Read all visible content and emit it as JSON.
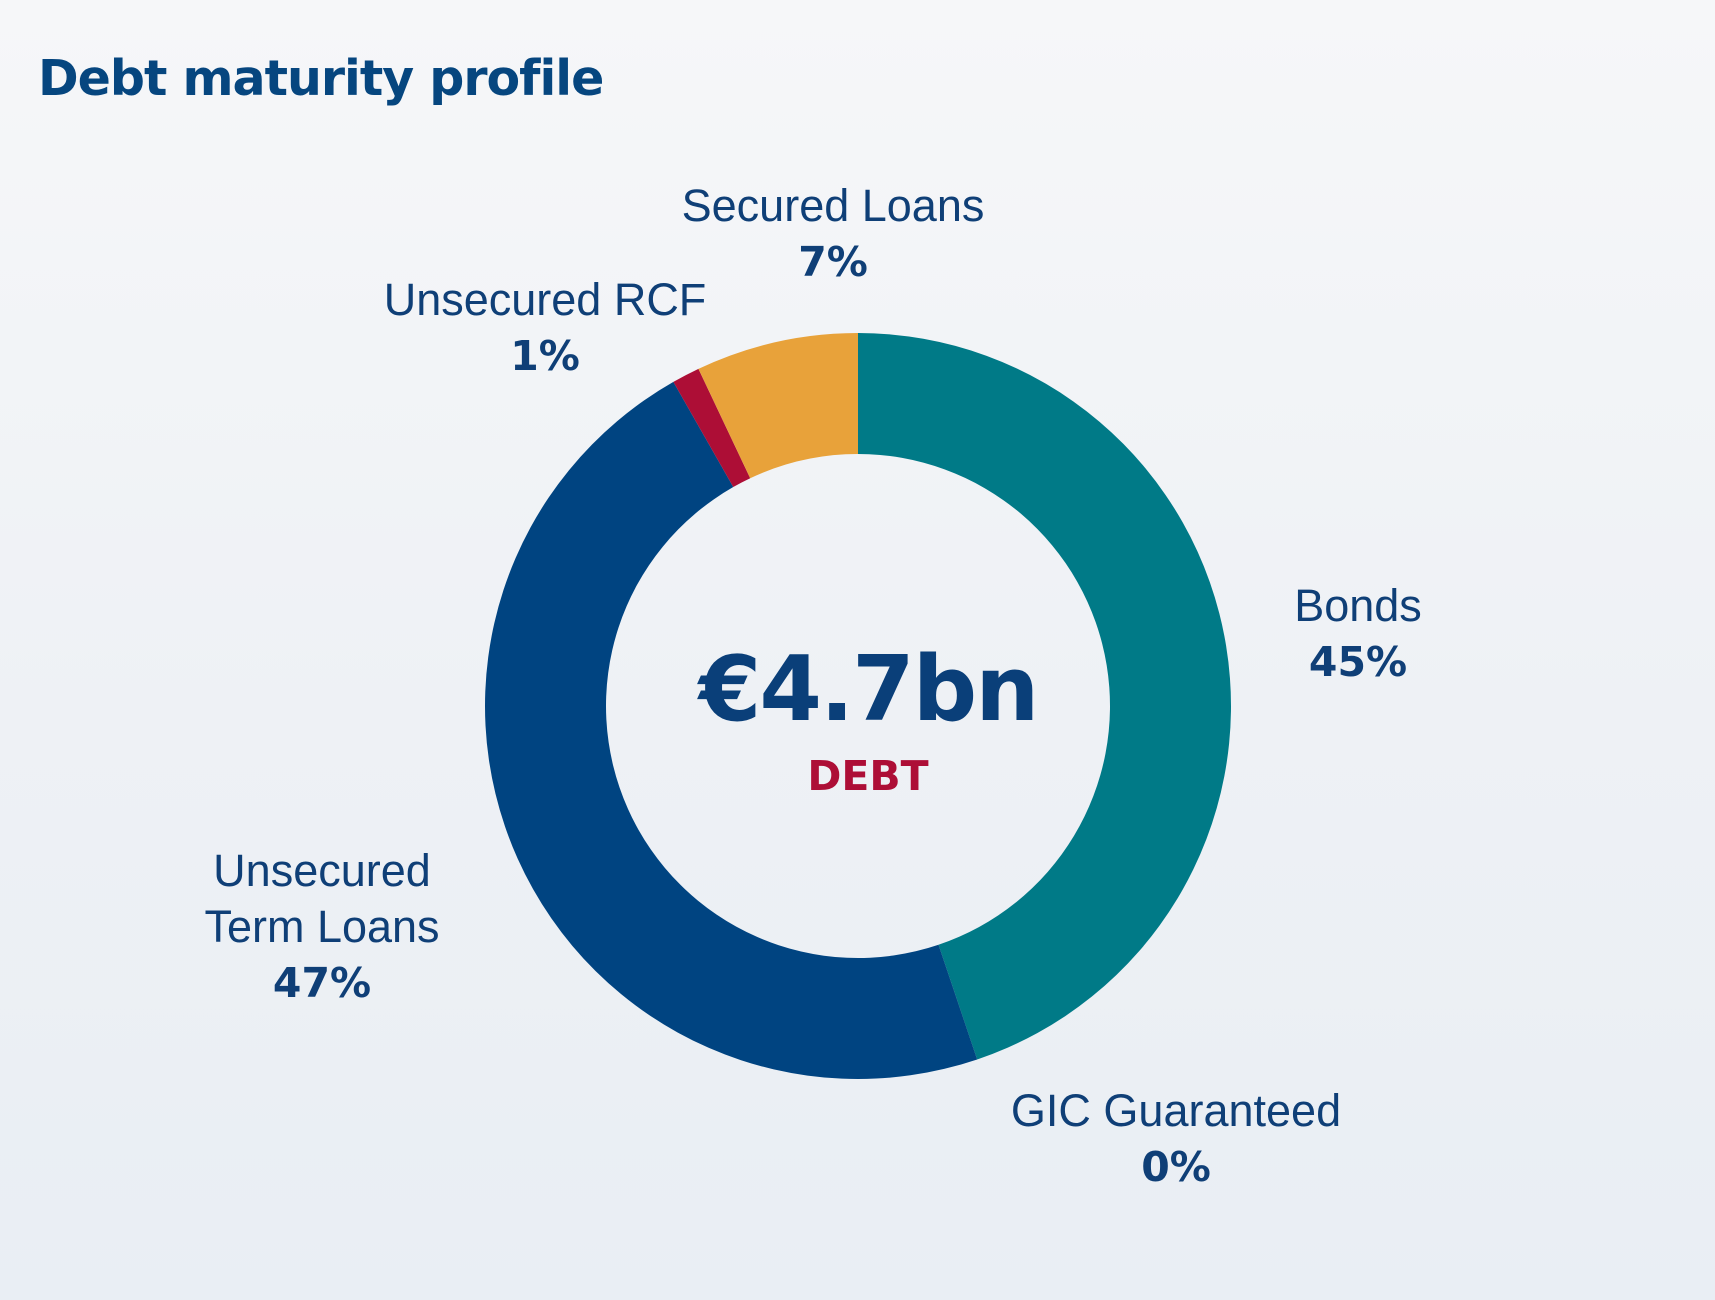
{
  "chart_data": {
    "type": "pie",
    "title": "Debt maturity profile",
    "center_total": "€4.7bn",
    "center_caption": "DEBT",
    "slices": [
      {
        "name": "Bonds",
        "percent_label": "45%",
        "value": 44.6,
        "color": "#007a87"
      },
      {
        "name": "GIC Guaranteed",
        "percent_label": "0%",
        "value": 0,
        "color": "#0a8a94"
      },
      {
        "name": "Unsecured\nTerm Loans",
        "percent_label": "47%",
        "value": 46.7,
        "color": "#004481"
      },
      {
        "name": "Unsecured RCF",
        "percent_label": "1%",
        "value": 1.2,
        "color": "#ad0e36"
      },
      {
        "name": "Secured Loans",
        "percent_label": "7%",
        "value": 7.0,
        "color": "#e8a23a"
      }
    ]
  }
}
